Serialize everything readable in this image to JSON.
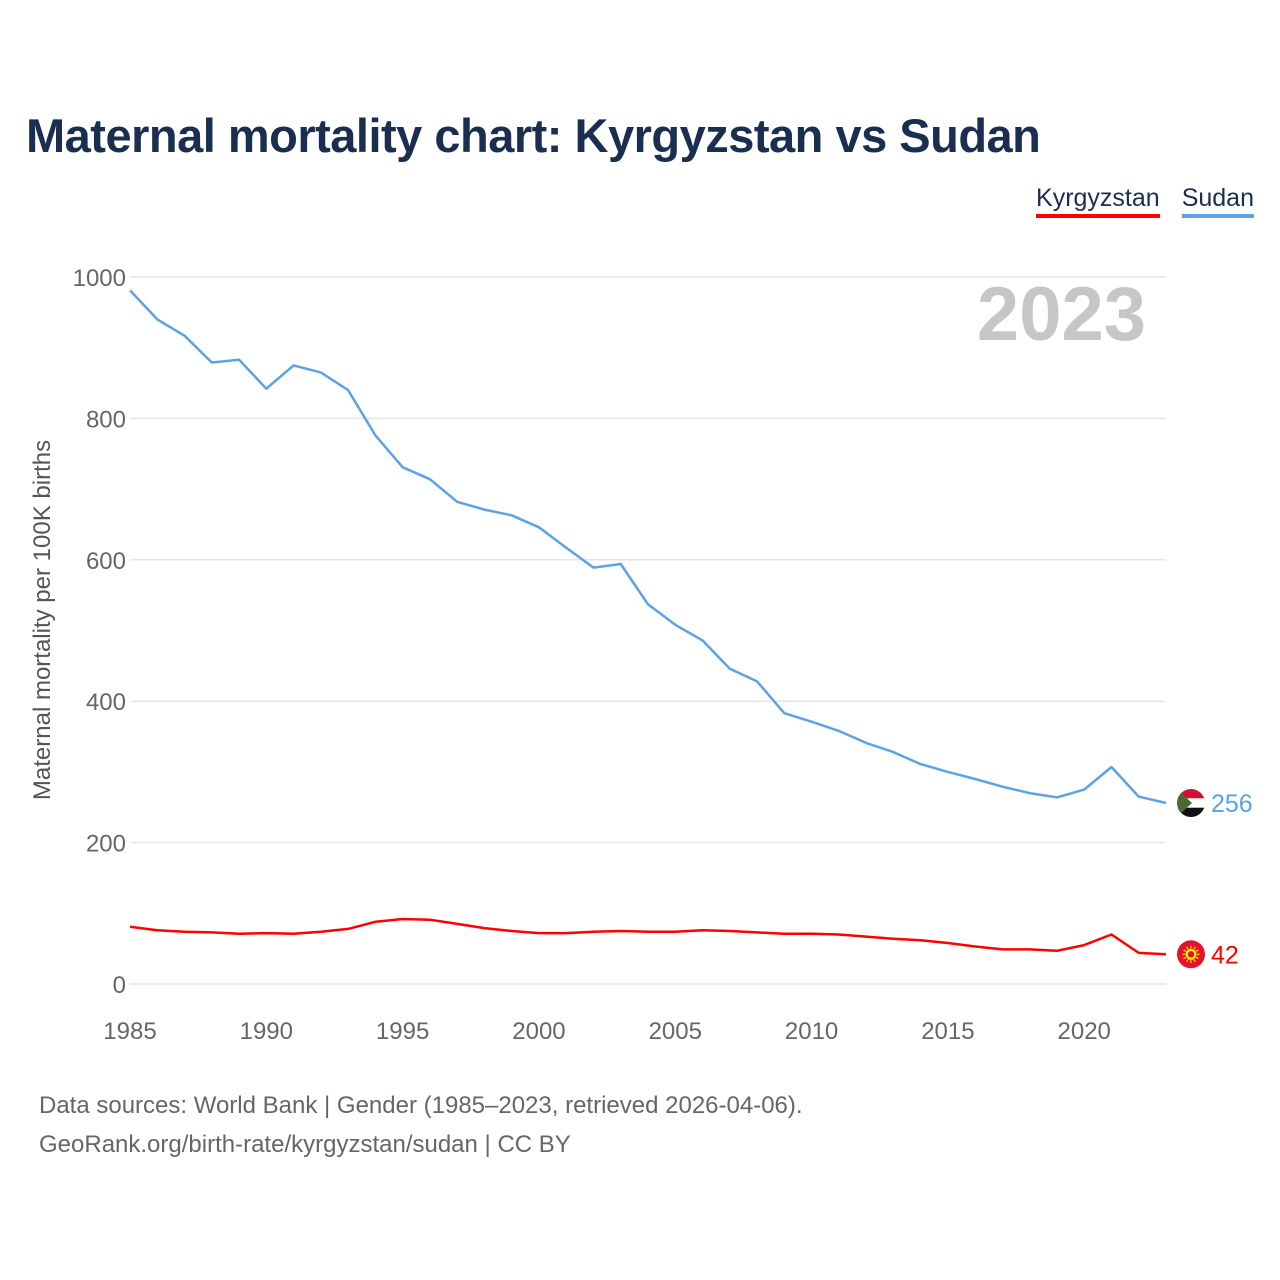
{
  "title": "Maternal mortality chart: Kyrgyzstan vs Sudan",
  "year_label": "2023",
  "legend": [
    {
      "label": "Kyrgyzstan",
      "color": "#ff0000"
    },
    {
      "label": "Sudan",
      "color": "#5ba3e6"
    }
  ],
  "sources": {
    "line1": "Data sources: World Bank | Gender (1985–2023, retrieved 2026-04-06).",
    "line2": "GeoRank.org/birth-rate/kyrgyzstan/sudan | CC BY"
  },
  "chart_data": {
    "type": "line",
    "title": "Maternal mortality chart: Kyrgyzstan vs Sudan",
    "xlabel": "",
    "ylabel": "Maternal mortality per 100K births",
    "xlim": [
      1985,
      2023
    ],
    "ylim": [
      0,
      1000
    ],
    "yticks": [
      0,
      200,
      400,
      600,
      800,
      1000
    ],
    "xticks": [
      1985,
      1990,
      1995,
      2000,
      2005,
      2010,
      2015,
      2020
    ],
    "grid": true,
    "x": [
      1985,
      1986,
      1987,
      1988,
      1989,
      1990,
      1991,
      1992,
      1993,
      1994,
      1995,
      1996,
      1997,
      1998,
      1999,
      2000,
      2001,
      2002,
      2003,
      2004,
      2005,
      2006,
      2007,
      2008,
      2009,
      2010,
      2011,
      2012,
      2013,
      2014,
      2015,
      2016,
      2017,
      2018,
      2019,
      2020,
      2021,
      2022,
      2023
    ],
    "series": [
      {
        "name": "Sudan",
        "color": "#5ba3e6",
        "end_label": "256",
        "flag": "sudan-flag-icon",
        "values": [
          981,
          940,
          917,
          879,
          883,
          842,
          875,
          865,
          840,
          776,
          731,
          714,
          682,
          671,
          663,
          646,
          617,
          589,
          594,
          537,
          508,
          486,
          446,
          428,
          383,
          371,
          358,
          341,
          328,
          311,
          300,
          290,
          279,
          270,
          264,
          275,
          307,
          265,
          256
        ]
      },
      {
        "name": "Kyrgyzstan",
        "color": "#ff0000",
        "end_label": "42",
        "flag": "kyrgyzstan-flag-icon",
        "values": [
          81,
          76,
          74,
          73,
          71,
          72,
          71,
          74,
          78,
          88,
          92,
          91,
          85,
          79,
          75,
          72,
          72,
          74,
          75,
          74,
          74,
          76,
          75,
          73,
          71,
          71,
          70,
          67,
          64,
          62,
          58,
          53,
          49,
          49,
          47,
          55,
          70,
          44,
          42
        ]
      }
    ]
  }
}
